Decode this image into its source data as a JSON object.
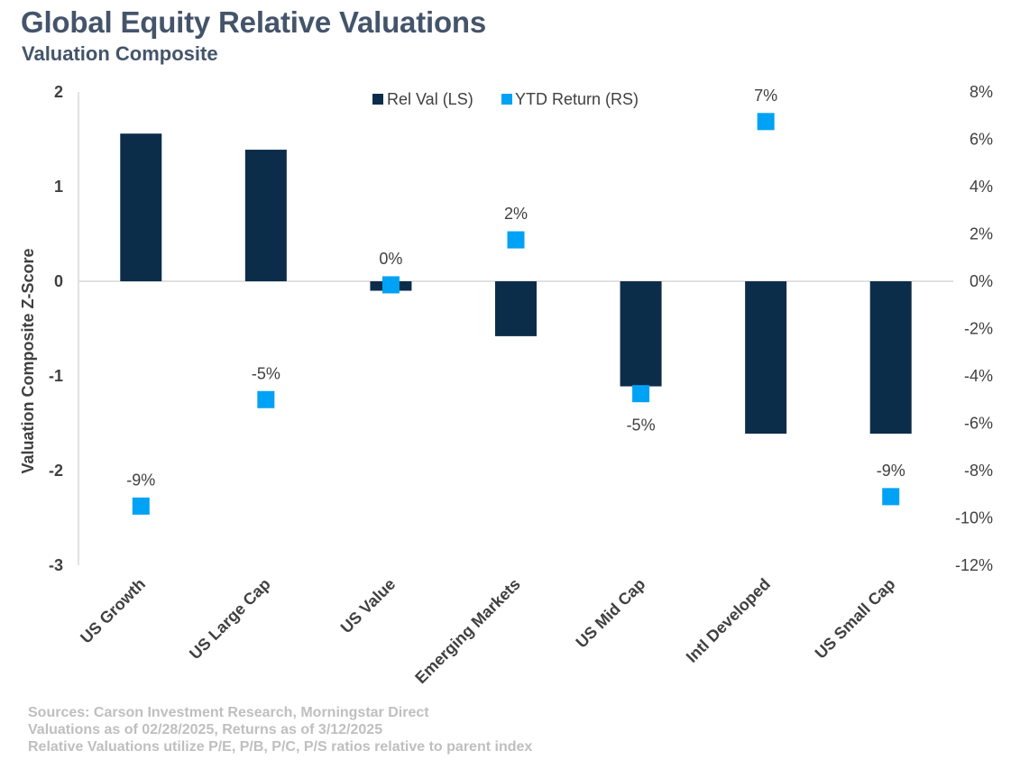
{
  "header": {
    "title": "Global Equity Relative Valuations",
    "subtitle": "Valuation Composite"
  },
  "footnotes": [
    "Sources: Carson Investment Research, Morningstar Direct",
    "Valuations as of 02/28/2025, Returns as of 3/12/2025",
    "Relative Valuations utilize P/E, P/B, P/C, P/S ratios relative to parent index"
  ],
  "colors": {
    "bar": "#0c2d4a",
    "marker": "#00a2f5",
    "title": "#44546a",
    "footnote": "#bfbfbf",
    "axis": "#d9d9d9",
    "text": "#404040"
  },
  "chart_data": {
    "type": "bar",
    "categories": [
      "US Growth",
      "US Large Cap",
      "US Value",
      "Emerging Markets",
      "US Mid Cap",
      "Intl Developed",
      "US Small Cap"
    ],
    "ylabel": "Valuation Composite Z-Score",
    "ylim": [
      -3,
      2
    ],
    "yticks": [
      "2",
      "1",
      "0",
      "-1",
      "-2",
      "-3"
    ],
    "y2lim": [
      -12,
      8
    ],
    "y2ticks": [
      "8%",
      "6%",
      "4%",
      "2%",
      "0%",
      "-2%",
      "-4%",
      "-6%",
      "-8%",
      "-10%",
      "-12%"
    ],
    "legend_position": "top",
    "grid": false,
    "series": [
      {
        "name": "Rel Val (LS)",
        "kind": "bar",
        "axis": "left",
        "values": [
          1.56,
          1.39,
          -0.1,
          -0.58,
          -1.11,
          -1.61,
          -1.61
        ]
      },
      {
        "name": "YTD Return (RS)",
        "kind": "marker",
        "axis": "right",
        "values": [
          -9.5,
          -5.0,
          -0.15,
          1.75,
          -4.75,
          6.75,
          -9.1
        ],
        "labels": [
          "-9%",
          "-5%",
          "0%",
          "2%",
          "-5%",
          "7%",
          "-9%"
        ]
      }
    ]
  }
}
